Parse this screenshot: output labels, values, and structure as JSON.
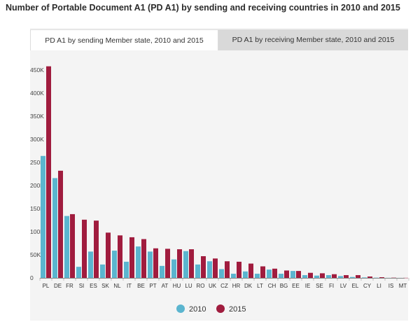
{
  "page": {
    "title": "Number of Portable Document A1 (PD A1) by sending and receiving countries in 2010 and 2015"
  },
  "tabs": [
    {
      "label": "PD A1 by sending Member state, 2010 and 2015",
      "active": true
    },
    {
      "label": "PD A1 by receiving Member state, 2010 and 2015",
      "active": false
    }
  ],
  "colors": {
    "s2010": "#5bb5cf",
    "s2015": "#a01c3e",
    "panel": "#f4f4f4"
  },
  "chart_data": {
    "type": "bar",
    "title": "",
    "xlabel": "",
    "ylabel": "",
    "ylim": [
      0,
      450000
    ],
    "yticks": [
      {
        "value": 0,
        "label": "0"
      },
      {
        "value": 50000,
        "label": "50K"
      },
      {
        "value": 100000,
        "label": "100K"
      },
      {
        "value": 150000,
        "label": "150K"
      },
      {
        "value": 200000,
        "label": "200K"
      },
      {
        "value": 250000,
        "label": "250K"
      },
      {
        "value": 300000,
        "label": "300K"
      },
      {
        "value": 350000,
        "label": "350K"
      },
      {
        "value": 400000,
        "label": "400K"
      },
      {
        "value": 450000,
        "label": "450K"
      }
    ],
    "grid": false,
    "legend": "bottom-center",
    "categories": [
      "PL",
      "DE",
      "FR",
      "SI",
      "ES",
      "SK",
      "NL",
      "IT",
      "BE",
      "PT",
      "AT",
      "HU",
      "LU",
      "RO",
      "UK",
      "CZ",
      "HR",
      "DK",
      "LT",
      "CH",
      "BG",
      "EE",
      "IE",
      "SE",
      "FI",
      "LV",
      "EL",
      "CY",
      "LI",
      "IS",
      "MT"
    ],
    "series": [
      {
        "name": "2010",
        "values": [
          264000,
          216000,
          134000,
          24000,
          57000,
          29000,
          59000,
          35000,
          68000,
          57000,
          26000,
          40000,
          58000,
          29000,
          36000,
          19000,
          9000,
          14000,
          9000,
          18000,
          9000,
          15000,
          6000,
          5000,
          6000,
          4000,
          2000,
          1000,
          500,
          200,
          100
        ]
      },
      {
        "name": "2015",
        "values": [
          458000,
          232000,
          138000,
          126000,
          124000,
          98000,
          92000,
          88000,
          84000,
          64000,
          63000,
          62000,
          62000,
          47000,
          42000,
          36000,
          35000,
          31000,
          25000,
          20000,
          16000,
          15000,
          11000,
          10000,
          8000,
          6000,
          6000,
          3000,
          1500,
          500,
          200
        ]
      }
    ]
  }
}
